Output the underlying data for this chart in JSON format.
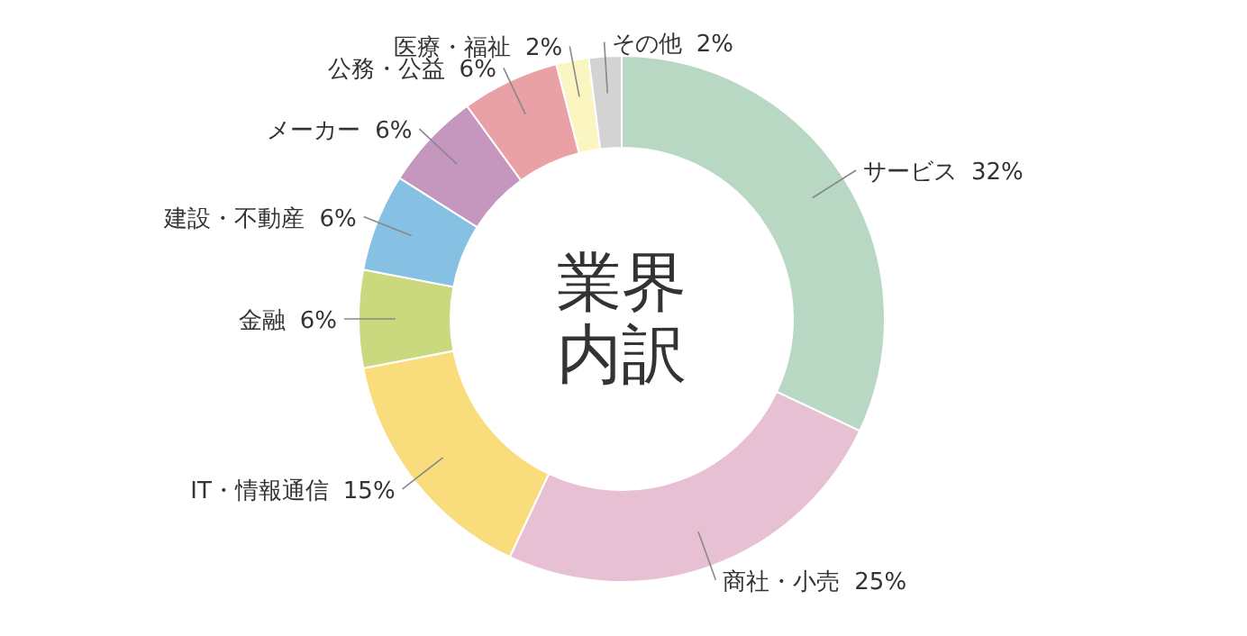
{
  "chart_data": {
    "type": "donut",
    "title": "業界内訳",
    "categories": [
      "サービス",
      "商社・小売",
      "IT・情報通信",
      "金融",
      "建設・不動産",
      "メーカー",
      "公務・公益",
      "医療・福祉",
      "その他"
    ],
    "values": [
      32,
      25,
      15,
      6,
      6,
      6,
      6,
      2,
      2
    ],
    "value_labels": [
      "32%",
      "25%",
      "15%",
      "6%",
      "6%",
      "6%",
      "6%",
      "2%",
      "2%"
    ],
    "colors": [
      "#b9d8c3",
      "#e8c0d3",
      "#f9dc7c",
      "#cad97e",
      "#86c1e4",
      "#c597bf",
      "#e9a1a5",
      "#fbf5c1",
      "#d3d3d3"
    ]
  }
}
